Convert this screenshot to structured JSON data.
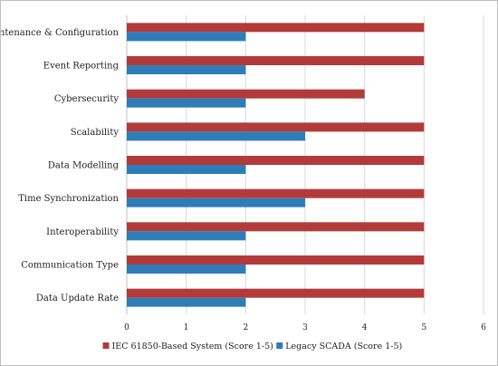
{
  "chart_data": {
    "type": "bar",
    "orientation": "horizontal",
    "categories": [
      "Maintenance & Configuration",
      "Event Reporting",
      "Cybersecurity",
      "Scalability",
      "Data Modelling",
      "Time Synchronization",
      "Interoperability",
      "Communication Type",
      "Data Update Rate"
    ],
    "series": [
      {
        "name": "IEC 61850-Based System (Score 1-5)",
        "color": "#b33a3a",
        "values": [
          5,
          5,
          4,
          5,
          5,
          5,
          5,
          5,
          5
        ]
      },
      {
        "name": "Legacy SCADA (Score 1-5)",
        "color": "#2e7db9",
        "values": [
          2,
          2,
          2,
          3,
          2,
          3,
          2,
          2,
          2
        ]
      }
    ],
    "xlim": [
      0,
      6
    ],
    "xticks": [
      0,
      1,
      2,
      3,
      4,
      5,
      6
    ],
    "grid": true,
    "legend": "bottom"
  }
}
